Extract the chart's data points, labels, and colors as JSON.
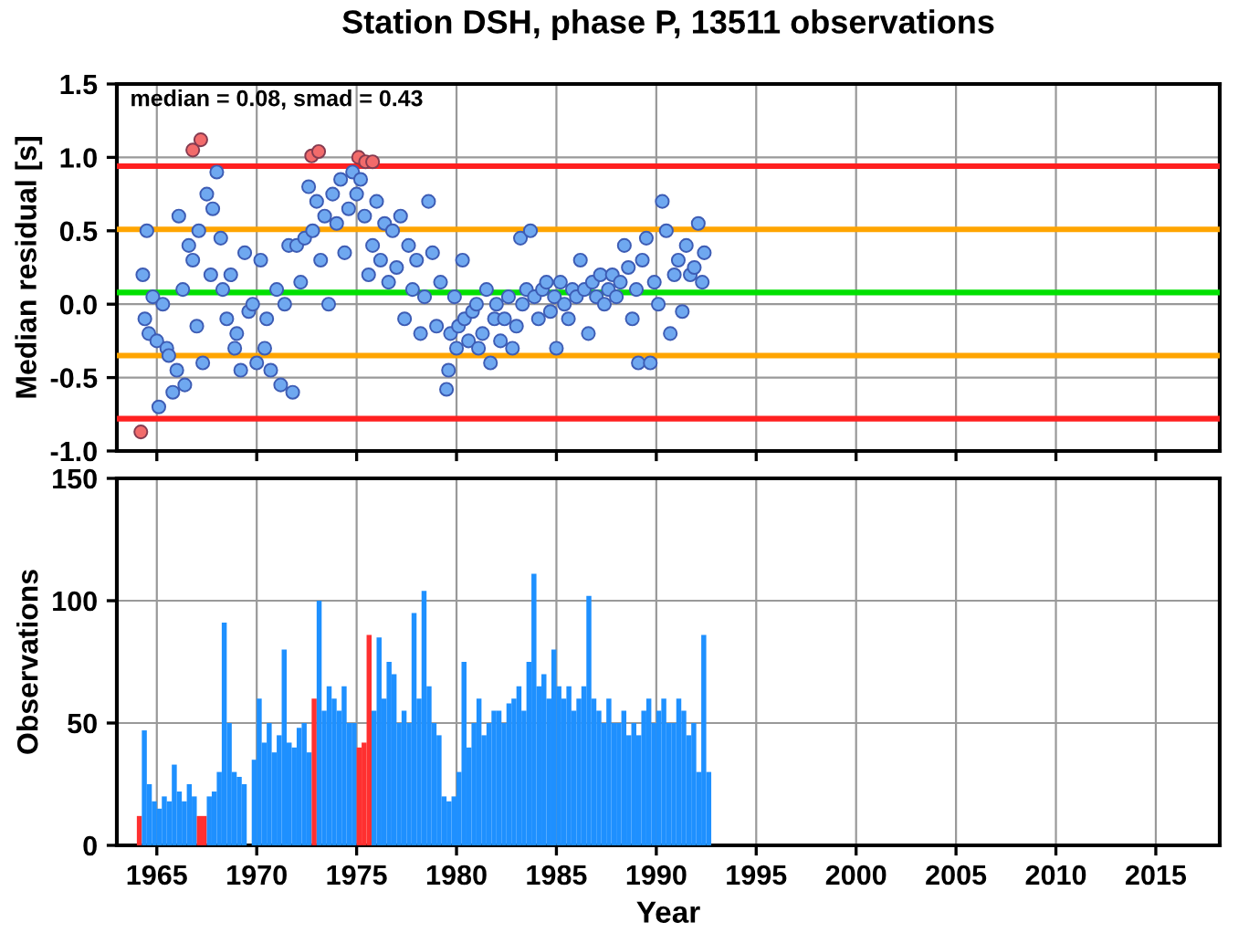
{
  "chart_data": [
    {
      "type": "scatter",
      "title": "Station DSH, phase P, 13511 observations",
      "ylabel": "Median residual [s]",
      "annotations": [
        "median = 0.08, smad = 0.43"
      ],
      "xlim": [
        1963,
        2018.2
      ],
      "xticks": [
        1965,
        1970,
        1975,
        1980,
        1985,
        1990,
        1995,
        2000,
        2005,
        2010,
        2015
      ],
      "ylim": [
        -1.0,
        1.5
      ],
      "yticks": [
        {
          "value": 1.5,
          "label": "1.5"
        },
        {
          "value": 1.0,
          "label": "1.0"
        },
        {
          "value": 0.5,
          "label": "0.5"
        },
        {
          "value": 0.0,
          "label": "0.0"
        },
        {
          "value": -0.5,
          "label": "-0.5"
        },
        {
          "value": -1.0,
          "label": "-1.0"
        }
      ],
      "tick_labels": "y",
      "grid": true,
      "marker": "circle",
      "ref_lines": [
        {
          "axis": "y",
          "value": 0.94,
          "color": "#ff2020"
        },
        {
          "axis": "y",
          "value": 0.51,
          "color": "#ffa500"
        },
        {
          "axis": "y",
          "value": 0.08,
          "color": "#00e000"
        },
        {
          "axis": "y",
          "value": -0.35,
          "color": "#ffa500"
        },
        {
          "axis": "y",
          "value": -0.78,
          "color": "#ff2020"
        }
      ],
      "series": [
        {
          "color": "#6fa8f0",
          "x": [
            1964.3,
            1964.4,
            1964.5,
            1964.6,
            1964.8,
            1965.0,
            1965.1,
            1965.3,
            1965.5,
            1965.6,
            1965.8,
            1966.0,
            1966.1,
            1966.3,
            1966.4,
            1966.6,
            1966.8,
            1967.0,
            1967.1,
            1967.3,
            1967.5,
            1967.7,
            1967.8,
            1968.0,
            1968.2,
            1968.3,
            1968.5,
            1968.7,
            1968.9,
            1969.0,
            1969.2,
            1969.4,
            1969.6,
            1969.8,
            1970.0,
            1970.2,
            1970.4,
            1970.5,
            1970.7,
            1971.0,
            1971.2,
            1971.4,
            1971.6,
            1971.8,
            1972.0,
            1972.2,
            1972.4,
            1972.6,
            1972.8,
            1973.0,
            1973.2,
            1973.4,
            1973.6,
            1973.8,
            1974.0,
            1974.2,
            1974.4,
            1974.6,
            1974.8,
            1975.0,
            1975.2,
            1975.4,
            1975.6,
            1975.8,
            1976.0,
            1976.2,
            1976.4,
            1976.6,
            1976.8,
            1977.0,
            1977.2,
            1977.4,
            1977.6,
            1977.8,
            1978.0,
            1978.2,
            1978.4,
            1978.6,
            1978.8,
            1979.0,
            1979.2,
            1979.5,
            1979.6,
            1979.7,
            1979.9,
            1980.0,
            1980.1,
            1980.3,
            1980.4,
            1980.6,
            1980.8,
            1981.0,
            1981.1,
            1981.3,
            1981.5,
            1981.7,
            1981.9,
            1982.0,
            1982.2,
            1982.4,
            1982.6,
            1982.8,
            1983.0,
            1983.2,
            1983.3,
            1983.5,
            1983.7,
            1983.9,
            1984.1,
            1984.3,
            1984.5,
            1984.7,
            1984.9,
            1985.0,
            1985.2,
            1985.4,
            1985.6,
            1985.8,
            1986.0,
            1986.2,
            1986.4,
            1986.6,
            1986.8,
            1987.0,
            1987.2,
            1987.4,
            1987.6,
            1987.8,
            1988.0,
            1988.2,
            1988.4,
            1988.6,
            1988.8,
            1989.0,
            1989.1,
            1989.3,
            1989.5,
            1989.7,
            1989.9,
            1990.1,
            1990.3,
            1990.5,
            1990.7,
            1990.9,
            1991.1,
            1991.3,
            1991.5,
            1991.7,
            1991.9,
            1992.1,
            1992.3,
            1992.4
          ],
          "values": [
            0.2,
            -0.1,
            0.5,
            -0.2,
            0.05,
            -0.25,
            -0.7,
            0.0,
            -0.3,
            -0.35,
            -0.6,
            -0.45,
            0.6,
            0.1,
            -0.55,
            0.4,
            0.3,
            -0.15,
            0.5,
            -0.4,
            0.75,
            0.2,
            0.65,
            0.9,
            0.45,
            0.1,
            -0.1,
            0.2,
            -0.3,
            -0.2,
            -0.45,
            0.35,
            -0.05,
            0.0,
            -0.4,
            0.3,
            -0.3,
            -0.1,
            -0.45,
            0.1,
            -0.55,
            0.0,
            0.4,
            -0.6,
            0.4,
            0.15,
            0.45,
            0.8,
            0.5,
            0.7,
            0.3,
            0.6,
            0.0,
            0.75,
            0.55,
            0.85,
            0.35,
            0.65,
            0.9,
            0.75,
            0.85,
            0.6,
            0.2,
            0.4,
            0.7,
            0.3,
            0.55,
            0.15,
            0.5,
            0.25,
            0.6,
            -0.1,
            0.4,
            0.1,
            0.3,
            -0.2,
            0.05,
            0.7,
            0.35,
            -0.15,
            0.15,
            -0.58,
            -0.45,
            -0.2,
            0.05,
            -0.3,
            -0.15,
            0.3,
            -0.1,
            -0.25,
            -0.05,
            0.0,
            -0.3,
            -0.2,
            0.1,
            -0.4,
            -0.1,
            0.0,
            -0.25,
            -0.1,
            0.05,
            -0.3,
            -0.15,
            0.45,
            0.0,
            0.1,
            0.5,
            0.05,
            -0.1,
            0.1,
            0.15,
            -0.05,
            0.05,
            -0.3,
            0.15,
            0.0,
            -0.1,
            0.1,
            0.05,
            0.3,
            0.1,
            -0.2,
            0.15,
            0.05,
            0.2,
            0.0,
            0.1,
            0.2,
            0.05,
            0.15,
            0.4,
            0.25,
            -0.1,
            0.1,
            -0.4,
            0.3,
            0.45,
            -0.4,
            0.15,
            0.0,
            0.7,
            0.5,
            -0.2,
            0.2,
            0.3,
            -0.05,
            0.4,
            0.2,
            0.25,
            0.55,
            0.15,
            0.35
          ]
        },
        {
          "color": "#f26b6b",
          "x": [
            1964.2,
            1966.8,
            1967.2,
            1972.75,
            1973.1,
            1975.1,
            1975.45,
            1975.8
          ],
          "values": [
            -0.87,
            1.05,
            1.12,
            1.01,
            1.04,
            1.0,
            0.97,
            0.97
          ]
        }
      ]
    },
    {
      "type": "bar",
      "xlabel": "Year",
      "ylabel": "Observations",
      "xlim": [
        1963,
        2018.2
      ],
      "xticks": [
        1965,
        1970,
        1975,
        1980,
        1985,
        1990,
        1995,
        2000,
        2005,
        2010,
        2015
      ],
      "ylim": [
        0,
        150
      ],
      "yticks": [
        0,
        50,
        100,
        150
      ],
      "grid": true,
      "x": [
        1964.0,
        1964.25,
        1964.5,
        1964.75,
        1965.0,
        1965.25,
        1965.5,
        1965.75,
        1966.0,
        1966.25,
        1966.5,
        1966.75,
        1967.0,
        1967.25,
        1967.5,
        1967.75,
        1968.0,
        1968.25,
        1968.5,
        1968.75,
        1969.0,
        1969.25,
        1969.5,
        1969.75,
        1970.0,
        1970.25,
        1970.5,
        1970.75,
        1971.0,
        1971.25,
        1971.5,
        1971.75,
        1972.0,
        1972.25,
        1972.5,
        1972.75,
        1973.0,
        1973.25,
        1973.5,
        1973.75,
        1974.0,
        1974.25,
        1974.5,
        1974.75,
        1975.0,
        1975.25,
        1975.5,
        1975.75,
        1976.0,
        1976.25,
        1976.5,
        1976.75,
        1977.0,
        1977.25,
        1977.5,
        1977.75,
        1978.0,
        1978.25,
        1978.5,
        1978.75,
        1979.0,
        1979.25,
        1979.5,
        1979.75,
        1980.0,
        1980.25,
        1980.5,
        1980.75,
        1981.0,
        1981.25,
        1981.5,
        1981.75,
        1982.0,
        1982.25,
        1982.5,
        1982.75,
        1983.0,
        1983.25,
        1983.5,
        1983.75,
        1984.0,
        1984.25,
        1984.5,
        1984.75,
        1985.0,
        1985.25,
        1985.5,
        1985.75,
        1986.0,
        1986.25,
        1986.5,
        1986.75,
        1987.0,
        1987.25,
        1987.5,
        1987.75,
        1988.0,
        1988.25,
        1988.5,
        1988.75,
        1989.0,
        1989.25,
        1989.5,
        1989.75,
        1990.0,
        1990.25,
        1990.5,
        1990.75,
        1991.0,
        1991.25,
        1991.5,
        1991.75,
        1992.0,
        1992.25,
        1992.5
      ],
      "values": [
        12,
        47,
        25,
        18,
        15,
        20,
        18,
        33,
        22,
        18,
        25,
        20,
        12,
        12,
        20,
        22,
        30,
        91,
        50,
        30,
        28,
        25,
        0,
        35,
        60,
        42,
        50,
        38,
        45,
        80,
        42,
        40,
        48,
        50,
        38,
        60,
        100,
        55,
        65,
        60,
        55,
        65,
        50,
        50,
        40,
        42,
        86,
        55,
        85,
        60,
        75,
        70,
        50,
        55,
        50,
        95,
        60,
        104,
        65,
        50,
        45,
        20,
        18,
        20,
        30,
        75,
        40,
        50,
        60,
        45,
        50,
        55,
        55,
        50,
        58,
        60,
        65,
        55,
        75,
        111,
        65,
        70,
        60,
        80,
        65,
        60,
        65,
        55,
        60,
        65,
        102,
        60,
        55,
        50,
        60,
        50,
        50,
        55,
        45,
        50,
        45,
        55,
        60,
        50,
        55,
        60,
        50,
        50,
        60,
        55,
        45,
        50,
        30,
        86,
        30
      ],
      "colors": [
        "#ff3030",
        "#1e90ff",
        "#1e90ff",
        "#1e90ff",
        "#1e90ff",
        "#1e90ff",
        "#1e90ff",
        "#1e90ff",
        "#1e90ff",
        "#1e90ff",
        "#1e90ff",
        "#1e90ff",
        "#ff3030",
        "#ff3030",
        "#1e90ff",
        "#1e90ff",
        "#1e90ff",
        "#1e90ff",
        "#1e90ff",
        "#1e90ff",
        "#1e90ff",
        "#1e90ff",
        "#1e90ff",
        "#1e90ff",
        "#1e90ff",
        "#1e90ff",
        "#1e90ff",
        "#1e90ff",
        "#1e90ff",
        "#1e90ff",
        "#1e90ff",
        "#1e90ff",
        "#1e90ff",
        "#1e90ff",
        "#1e90ff",
        "#ff3030",
        "#1e90ff",
        "#1e90ff",
        "#1e90ff",
        "#1e90ff",
        "#1e90ff",
        "#1e90ff",
        "#1e90ff",
        "#1e90ff",
        "#ff3030",
        "#ff3030",
        "#ff3030",
        "#1e90ff",
        "#1e90ff",
        "#1e90ff",
        "#1e90ff",
        "#1e90ff",
        "#1e90ff",
        "#1e90ff",
        "#1e90ff",
        "#1e90ff",
        "#1e90ff",
        "#1e90ff",
        "#1e90ff",
        "#1e90ff",
        "#1e90ff",
        "#1e90ff",
        "#1e90ff",
        "#1e90ff",
        "#1e90ff",
        "#1e90ff",
        "#1e90ff",
        "#1e90ff",
        "#1e90ff",
        "#1e90ff",
        "#1e90ff",
        "#1e90ff",
        "#1e90ff",
        "#1e90ff",
        "#1e90ff",
        "#1e90ff",
        "#1e90ff",
        "#1e90ff",
        "#1e90ff",
        "#1e90ff",
        "#1e90ff",
        "#1e90ff",
        "#1e90ff",
        "#1e90ff",
        "#1e90ff",
        "#1e90ff",
        "#1e90ff",
        "#1e90ff",
        "#1e90ff",
        "#1e90ff",
        "#1e90ff",
        "#1e90ff",
        "#1e90ff",
        "#1e90ff",
        "#1e90ff",
        "#1e90ff",
        "#1e90ff",
        "#1e90ff",
        "#1e90ff",
        "#1e90ff",
        "#1e90ff",
        "#1e90ff",
        "#1e90ff",
        "#1e90ff",
        "#1e90ff",
        "#1e90ff",
        "#1e90ff",
        "#1e90ff",
        "#1e90ff",
        "#1e90ff",
        "#1e90ff",
        "#1e90ff",
        "#1e90ff",
        "#1e90ff",
        "#1e90ff"
      ]
    }
  ]
}
